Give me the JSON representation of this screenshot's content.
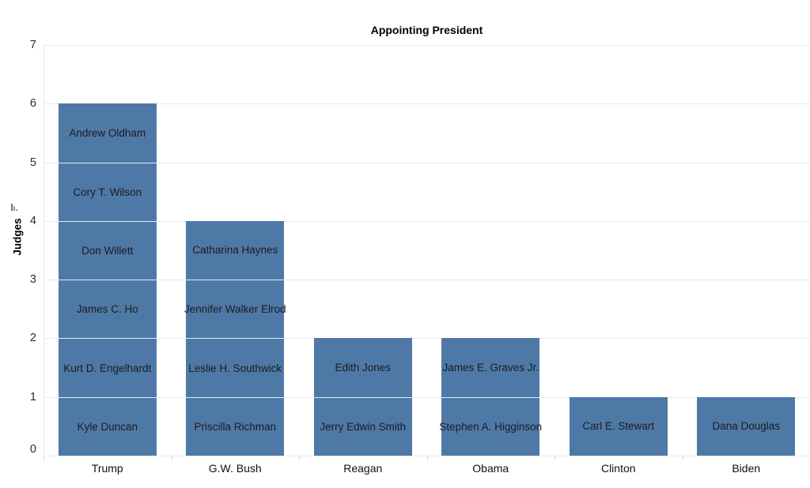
{
  "chart_data": {
    "type": "bar",
    "stacked": true,
    "title": "Appointing President",
    "xlabel": "",
    "ylabel": "Judges",
    "ylim": [
      0,
      7
    ],
    "yticks": [
      "0",
      "1",
      "2",
      "3",
      "4",
      "5",
      "6",
      "7"
    ],
    "grid": "horizontal-light",
    "legend": "none",
    "categories": [
      "Trump",
      "G.W. Bush",
      "Reagan",
      "Obama",
      "Clinton",
      "Biden"
    ],
    "values": [
      6,
      4,
      2,
      2,
      1,
      1
    ],
    "bars": [
      {
        "category": "Trump",
        "count": 6,
        "judges_top_to_bottom": [
          "Andrew Oldham",
          "Cory T. Wilson",
          "Don Willett",
          "James C. Ho",
          "Kurt D. Engelhardt",
          "Kyle Duncan"
        ]
      },
      {
        "category": "G.W. Bush",
        "count": 4,
        "judges_top_to_bottom": [
          "Catharina Haynes",
          "Jennifer Walker Elrod",
          "Leslie H. Southwick",
          "Priscilla Richman"
        ]
      },
      {
        "category": "Reagan",
        "count": 2,
        "judges_top_to_bottom": [
          "Edith Jones",
          "Jerry Edwin Smith"
        ]
      },
      {
        "category": "Obama",
        "count": 2,
        "judges_top_to_bottom": [
          "James E. Graves Jr.",
          "Stephen A. Higginson"
        ]
      },
      {
        "category": "Clinton",
        "count": 1,
        "judges_top_to_bottom": [
          "Carl E. Stewart"
        ]
      },
      {
        "category": "Biden",
        "count": 1,
        "judges_top_to_bottom": [
          "Dana Douglas"
        ]
      }
    ],
    "colors": {
      "bar": "#4e79a7",
      "segment_divider": "#ffffff",
      "gridline": "#e9e9e9",
      "label_text": "#1c1c1c"
    }
  },
  "icons": {
    "y_axis_sort": "sort-descending-icon"
  }
}
